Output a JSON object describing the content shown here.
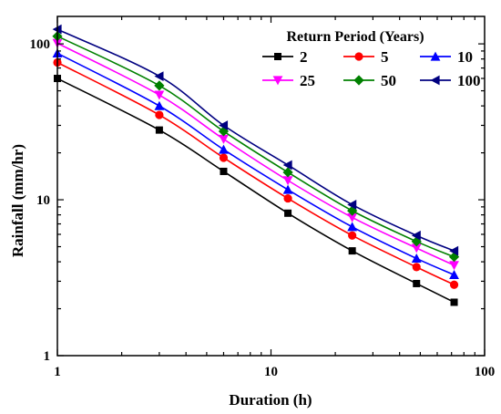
{
  "chart_data": {
    "type": "line",
    "xlabel": "Duration (h)",
    "ylabel": "Rainfall (mm/hr)",
    "xscale": "log",
    "yscale": "log",
    "xlim": [
      1,
      100
    ],
    "ylim": [
      1,
      150
    ],
    "x_ticks": [
      1,
      10,
      100
    ],
    "x_tick_labels": [
      "1",
      "10",
      "100"
    ],
    "y_ticks": [
      1,
      10,
      100
    ],
    "y_tick_labels": [
      "1",
      "10",
      "100"
    ],
    "grid": false,
    "legend_title": "Return Period (Years)",
    "legend_position": "top-right",
    "x": [
      1,
      3,
      6,
      12,
      24,
      48,
      72
    ],
    "series": [
      {
        "name": "2",
        "color": "#000000",
        "marker": "square",
        "values": [
          60,
          28,
          15.2,
          8.2,
          4.7,
          2.9,
          2.2
        ]
      },
      {
        "name": "5",
        "color": "#ff0000",
        "marker": "circle",
        "values": [
          76,
          35,
          18.6,
          10.2,
          5.9,
          3.7,
          2.85
        ]
      },
      {
        "name": "10",
        "color": "#0000ff",
        "marker": "triangle-up",
        "values": [
          87,
          40,
          21,
          11.6,
          6.7,
          4.2,
          3.3
        ]
      },
      {
        "name": "25",
        "color": "#ff00ff",
        "marker": "triangle-down",
        "values": [
          101,
          47,
          24.5,
          13.3,
          7.7,
          4.9,
          3.8
        ]
      },
      {
        "name": "50",
        "color": "#008000",
        "marker": "diamond",
        "values": [
          112,
          54,
          27.5,
          15,
          8.5,
          5.4,
          4.3
        ]
      },
      {
        "name": "100",
        "color": "#000080",
        "marker": "triangle-left",
        "values": [
          124,
          62,
          30,
          16.7,
          9.3,
          5.9,
          4.7
        ]
      }
    ]
  }
}
